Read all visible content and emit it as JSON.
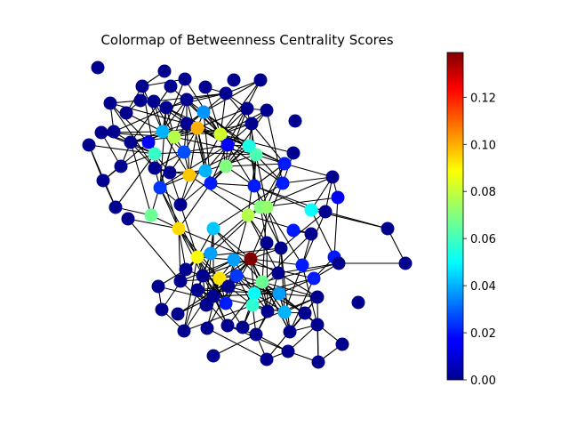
{
  "title": "Colormap of Betweenness Centrality Scores",
  "colorbar": {
    "colormap": "jet",
    "min": 0.0,
    "max": 0.139,
    "ticks": [
      "0.00",
      "0.02",
      "0.04",
      "0.06",
      "0.08",
      "0.10",
      "0.12"
    ],
    "tick_values": [
      0.0,
      0.02,
      0.04,
      0.06,
      0.08,
      0.1,
      0.12
    ]
  },
  "graph": {
    "node_count": 107,
    "node_colors": {
      "low": "#00008f",
      "mid": "#80ff80",
      "high": "#800000"
    }
  }
}
